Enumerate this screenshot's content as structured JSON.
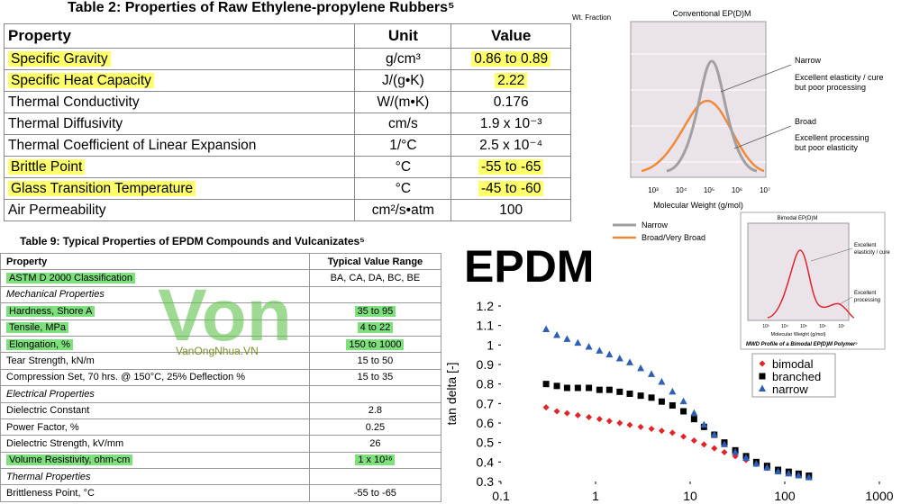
{
  "table2": {
    "title": "Table 2:  Properties of Raw Ethylene-propylene Rubbers⁵",
    "header": [
      "Property",
      "Unit",
      "Value"
    ],
    "rows": [
      {
        "cells": [
          "Specific Gravity",
          "g/cm³",
          "0.86 to 0.89"
        ],
        "highlight": [
          true,
          false,
          true
        ]
      },
      {
        "cells": [
          "Specific Heat Capacity",
          "J/(g•K)",
          "2.22"
        ],
        "highlight": [
          true,
          false,
          true
        ]
      },
      {
        "cells": [
          "Thermal Conductivity",
          "W/(m•K)",
          "0.176"
        ],
        "highlight": [
          false,
          false,
          false
        ]
      },
      {
        "cells": [
          "Thermal Diffusivity",
          "cm/s",
          "1.9 x 10⁻³"
        ],
        "highlight": [
          false,
          false,
          false
        ]
      },
      {
        "cells": [
          "Thermal Coefficient of Linear Expansion",
          "1/°C",
          "2.5 x 10⁻⁴"
        ],
        "highlight": [
          false,
          false,
          false
        ]
      },
      {
        "cells": [
          "Brittle Point",
          "°C",
          "-55 to -65"
        ],
        "highlight": [
          true,
          false,
          true
        ]
      },
      {
        "cells": [
          "Glass Transition Temperature",
          "°C",
          "-45 to -60"
        ],
        "highlight": [
          true,
          false,
          true
        ]
      },
      {
        "cells": [
          "Air Permeability",
          "cm²/s•atm",
          "100"
        ],
        "highlight": [
          false,
          false,
          false
        ]
      }
    ]
  },
  "table9": {
    "title": "Table 9:  Typical Properties of EPDM Compounds and Vulcanizates⁵",
    "header": [
      "Property",
      "Typical Value Range"
    ],
    "rows": [
      {
        "cells": [
          "ASTM D 2000 Classification",
          "BA, CA, DA, BC, BE"
        ],
        "highlight": [
          true,
          false
        ]
      },
      {
        "section": "Mechanical Properties"
      },
      {
        "cells": [
          "Hardness, Shore A",
          "35 to 95"
        ],
        "highlight": [
          true,
          true
        ]
      },
      {
        "cells": [
          "Tensile, MPa",
          "4 to 22"
        ],
        "highlight": [
          true,
          true
        ]
      },
      {
        "cells": [
          "Elongation, %",
          "150 to 1000"
        ],
        "highlight": [
          true,
          true
        ]
      },
      {
        "cells": [
          "Tear Strength, kN/m",
          "15 to 50"
        ],
        "highlight": [
          false,
          false
        ]
      },
      {
        "cells": [
          "Compression Set, 70 hrs. @ 150°C, 25% Deflection %",
          "15 to 35"
        ],
        "highlight": [
          false,
          false
        ]
      },
      {
        "section": "Electrical Properties"
      },
      {
        "cells": [
          "Dielectric Constant",
          "2.8"
        ],
        "highlight": [
          false,
          false
        ]
      },
      {
        "cells": [
          "Power Factor, %",
          "0.25"
        ],
        "highlight": [
          false,
          false
        ]
      },
      {
        "cells": [
          "Dielectric Strength, kV/mm",
          "26"
        ],
        "highlight": [
          false,
          false
        ]
      },
      {
        "cells": [
          "Volume Resistivity, ohm-cm",
          "1 x 10¹⁶"
        ],
        "highlight": [
          true,
          true
        ]
      },
      {
        "section": "Thermal Properties"
      },
      {
        "cells": [
          "Brittleness Point, °C",
          "-55 to -65"
        ],
        "highlight": [
          false,
          false
        ]
      }
    ]
  },
  "watermark": {
    "logo": "Von",
    "site": "VanOngNhua.VN"
  },
  "headline": "EPDM",
  "conventional": {
    "title": "Conventional EP(D)M",
    "ylabel": "Wt. Fraction",
    "xticks": [
      "10³",
      "10⁴",
      "10⁵",
      "10⁶",
      "10⁷"
    ],
    "xlabel": "Molecular Weight (g/mol)",
    "narrow_label": "Narrow",
    "narrow_note": [
      "Excellent elasticity / cure",
      "but poor processing"
    ],
    "broad_label": "Broad",
    "broad_note": [
      "Excellent processing",
      "but poor elasticity"
    ],
    "legend": [
      "Narrow",
      "Broad/Very Broad"
    ]
  },
  "bimodal": {
    "title": "Bimodal EP(D)M",
    "note1": [
      "Excellent",
      "elasticity / cure"
    ],
    "note2": [
      "Excellent",
      "processing"
    ],
    "xticks": [
      "10³",
      "10⁴",
      "10⁵",
      "10⁶",
      "10⁷"
    ],
    "xlabel": "Molecular Weight (g/mol)",
    "caption": "MWD Profile of a Bimodal EP(D)M Polymer⁵"
  },
  "chart_data": {
    "type": "scatter",
    "ylabel": "tan delta [-]",
    "xscale": "log",
    "x": [
      0.3,
      0.39,
      0.5,
      0.65,
      0.85,
      1.1,
      1.4,
      1.8,
      2.3,
      3,
      3.9,
      5,
      6.5,
      8.5,
      11,
      14,
      18,
      23,
      30,
      39,
      50,
      65,
      85,
      110,
      140,
      180
    ],
    "series": [
      {
        "name": "bimodal",
        "color": "#e0242a",
        "marker": "diamond",
        "values": [
          0.68,
          0.66,
          0.65,
          0.64,
          0.63,
          0.62,
          0.61,
          0.6,
          0.59,
          0.58,
          0.57,
          0.56,
          0.55,
          0.53,
          0.51,
          0.49,
          0.47,
          0.45,
          0.43,
          0.41,
          0.39,
          0.37,
          0.36,
          0.35,
          0.34,
          0.33
        ]
      },
      {
        "name": "branched",
        "color": "#000000",
        "marker": "square",
        "values": [
          0.8,
          0.79,
          0.78,
          0.78,
          0.78,
          0.77,
          0.77,
          0.76,
          0.75,
          0.74,
          0.73,
          0.71,
          0.69,
          0.66,
          0.62,
          0.58,
          0.54,
          0.5,
          0.46,
          0.43,
          0.4,
          0.38,
          0.36,
          0.35,
          0.34,
          0.33
        ]
      },
      {
        "name": "narrow",
        "color": "#2e5fb4",
        "marker": "triangle",
        "values": [
          1.08,
          1.05,
          1.03,
          1.01,
          0.99,
          0.97,
          0.95,
          0.93,
          0.91,
          0.88,
          0.85,
          0.81,
          0.76,
          0.71,
          0.65,
          0.59,
          0.54,
          0.49,
          0.45,
          0.42,
          0.39,
          0.37,
          0.35,
          0.34,
          0.33,
          0.32
        ]
      }
    ],
    "xlim": [
      0.1,
      1000
    ],
    "xticks": [
      0.1,
      1,
      10,
      100,
      1000
    ],
    "ylim": [
      0.3,
      1.2
    ],
    "yticks": [
      0.3,
      0.4,
      0.5,
      0.6,
      0.7,
      0.8,
      0.9,
      1,
      1.1,
      1.2
    ]
  }
}
